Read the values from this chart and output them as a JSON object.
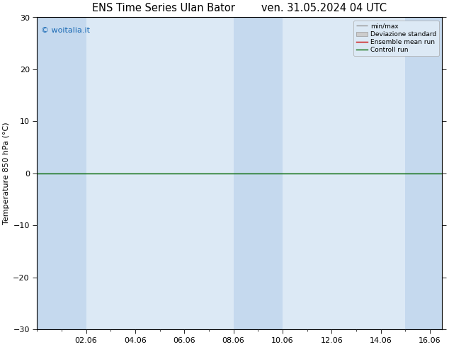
{
  "title_left": "ENS Time Series Ulan Bator",
  "title_right": "ven. 31.05.2024 04 UTC",
  "ylabel": "Temperature 850 hPa (°C)",
  "ylim": [
    -30,
    30
  ],
  "yticks": [
    -30,
    -20,
    -10,
    0,
    10,
    20,
    30
  ],
  "xtick_labels": [
    "02.06",
    "04.06",
    "06.06",
    "08.06",
    "10.06",
    "12.06",
    "14.06",
    "16.06"
  ],
  "xtick_positions": [
    2,
    4,
    6,
    8,
    10,
    12,
    14,
    16
  ],
  "xlim": [
    0,
    16.5
  ],
  "watermark": "© woitalia.it",
  "legend_items": [
    "min/max",
    "Deviazione standard",
    "Ensemble mean run",
    "Controll run"
  ],
  "background_color": "#ffffff",
  "plot_bg_color": "#dce9f5",
  "band_color": "#c5d9ee",
  "zero_line_color": "#006600",
  "title_fontsize": 10.5,
  "axis_fontsize": 8,
  "tick_fontsize": 8,
  "shaded_bands": [
    [
      0,
      1
    ],
    [
      2,
      3
    ],
    [
      8,
      9
    ],
    [
      9,
      10
    ],
    [
      15,
      16.5
    ]
  ],
  "darker_bands": [
    [
      0,
      1
    ],
    [
      2,
      3
    ],
    [
      8,
      9
    ],
    [
      9,
      10
    ],
    [
      15,
      16.5
    ]
  ]
}
